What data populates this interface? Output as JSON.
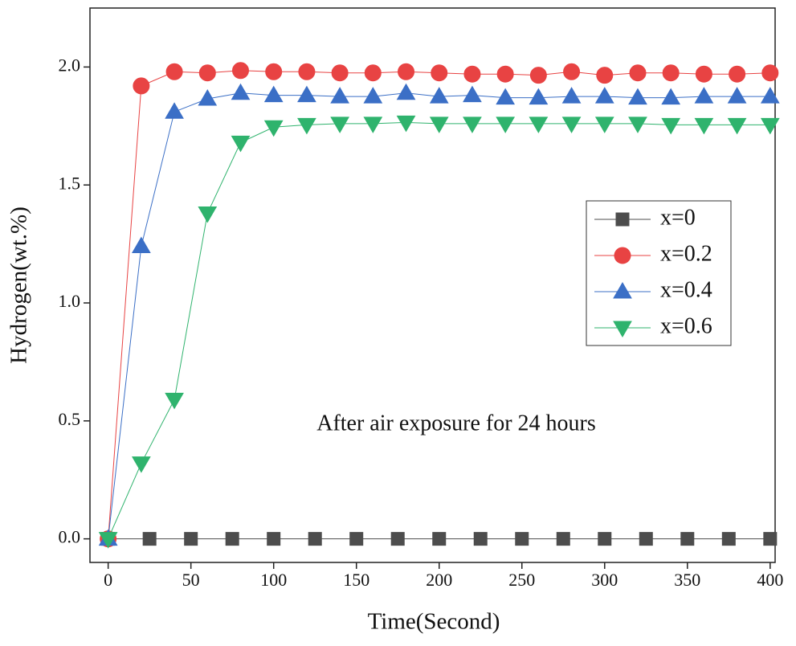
{
  "chart_data": {
    "type": "line",
    "xlabel": "Time(Second)",
    "ylabel": "Hydrogen(wt.%)",
    "annotation": "After air exposure for 24 hours",
    "xlim": [
      -11,
      403
    ],
    "ylim": [
      -0.1,
      2.25
    ],
    "xticks": [
      0,
      50,
      100,
      150,
      200,
      250,
      300,
      350,
      400
    ],
    "yticks": [
      {
        "value": 0,
        "label": "0.0"
      },
      {
        "value": 0.5,
        "label": "0.5"
      },
      {
        "value": 1,
        "label": "1.0"
      },
      {
        "value": 1.5,
        "label": "1.5"
      },
      {
        "value": 2,
        "label": "2.0"
      }
    ],
    "legend": "right",
    "series": [
      {
        "name": "x=0",
        "color": "#4d4d4d",
        "marker": "square",
        "x": [
          0,
          25,
          50,
          75,
          100,
          125,
          150,
          175,
          200,
          225,
          250,
          275,
          300,
          325,
          350,
          375,
          400
        ],
        "values": [
          0,
          0,
          0,
          0,
          0,
          0,
          0,
          0,
          0,
          0,
          0,
          0,
          0,
          0,
          0,
          0,
          0
        ]
      },
      {
        "name": "x=0.2",
        "color": "#e84343",
        "marker": "circle",
        "x": [
          0,
          20,
          40,
          60,
          80,
          100,
          120,
          140,
          160,
          180,
          200,
          220,
          240,
          260,
          280,
          300,
          320,
          340,
          360,
          380,
          400
        ],
        "values": [
          0,
          1.92,
          1.98,
          1.975,
          1.985,
          1.98,
          1.98,
          1.975,
          1.975,
          1.98,
          1.975,
          1.97,
          1.97,
          1.965,
          1.98,
          1.965,
          1.975,
          1.975,
          1.97,
          1.97,
          1.975
        ]
      },
      {
        "name": "x=0.4",
        "color": "#3b6fc6",
        "marker": "triangle-up",
        "x": [
          0,
          20,
          40,
          60,
          80,
          100,
          120,
          140,
          160,
          180,
          200,
          220,
          240,
          260,
          280,
          300,
          320,
          340,
          360,
          380,
          400
        ],
        "values": [
          0,
          1.24,
          1.81,
          1.865,
          1.89,
          1.88,
          1.88,
          1.875,
          1.875,
          1.89,
          1.875,
          1.88,
          1.87,
          1.87,
          1.875,
          1.875,
          1.87,
          1.87,
          1.875,
          1.875,
          1.875
        ]
      },
      {
        "name": "x=0.6",
        "color": "#2fb36d",
        "marker": "triangle-down",
        "x": [
          0,
          20,
          40,
          60,
          80,
          100,
          120,
          140,
          160,
          180,
          200,
          220,
          240,
          260,
          280,
          300,
          320,
          340,
          360,
          380,
          400
        ],
        "values": [
          0,
          0.32,
          0.59,
          1.38,
          1.68,
          1.745,
          1.755,
          1.76,
          1.76,
          1.765,
          1.76,
          1.76,
          1.76,
          1.76,
          1.76,
          1.76,
          1.76,
          1.755,
          1.755,
          1.755,
          1.755
        ]
      }
    ]
  }
}
